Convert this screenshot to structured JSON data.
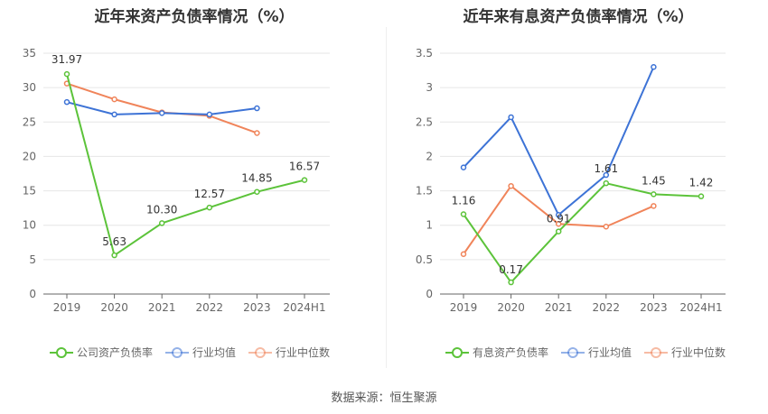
{
  "source_label": "数据来源：恒生聚源",
  "chart_data": [
    {
      "type": "line",
      "title": "近年来资产负债率情况（%）",
      "categories": [
        "2019",
        "2020",
        "2021",
        "2022",
        "2023",
        "2024H1"
      ],
      "ylim": [
        0,
        35
      ],
      "yticks": [
        0,
        5,
        10,
        15,
        20,
        25,
        30,
        35
      ],
      "grid": true,
      "legend_position": "bottom-left",
      "series": [
        {
          "name": "公司资产负债率",
          "color": "#5cc33a",
          "values": [
            31.97,
            5.63,
            10.3,
            12.57,
            14.85,
            16.57
          ],
          "labels": [
            "31.97",
            "5.63",
            "10.30",
            "12.57",
            "14.85",
            "16.57"
          ]
        },
        {
          "name": "行业均值",
          "color": "#3d73d6",
          "values": [
            27.9,
            26.1,
            26.3,
            26.1,
            27.0,
            null
          ],
          "labels": null
        },
        {
          "name": "行业中位数",
          "color": "#f0845a",
          "values": [
            30.6,
            28.3,
            26.4,
            25.9,
            23.4,
            null
          ],
          "labels": null
        }
      ]
    },
    {
      "type": "line",
      "title": "近年来有息资产负债率情况（%）",
      "categories": [
        "2019",
        "2020",
        "2021",
        "2022",
        "2023",
        "2024H1"
      ],
      "ylim": [
        0,
        3.5
      ],
      "yticks": [
        0,
        0.5,
        1,
        1.5,
        2,
        2.5,
        3,
        3.5
      ],
      "grid": true,
      "legend_position": "bottom-left",
      "series": [
        {
          "name": "有息资产负债率",
          "color": "#5cc33a",
          "values": [
            1.16,
            0.17,
            0.91,
            1.61,
            1.45,
            1.42
          ],
          "labels": [
            "1.16",
            "0.17",
            "0.91",
            "1.61",
            "1.45",
            "1.42"
          ]
        },
        {
          "name": "行业均值",
          "color": "#3d73d6",
          "values": [
            1.84,
            2.57,
            1.15,
            1.73,
            3.3,
            null
          ],
          "labels": null
        },
        {
          "name": "行业中位数",
          "color": "#f0845a",
          "values": [
            0.58,
            1.57,
            1.02,
            0.98,
            1.28,
            null
          ],
          "labels": null
        }
      ]
    }
  ]
}
